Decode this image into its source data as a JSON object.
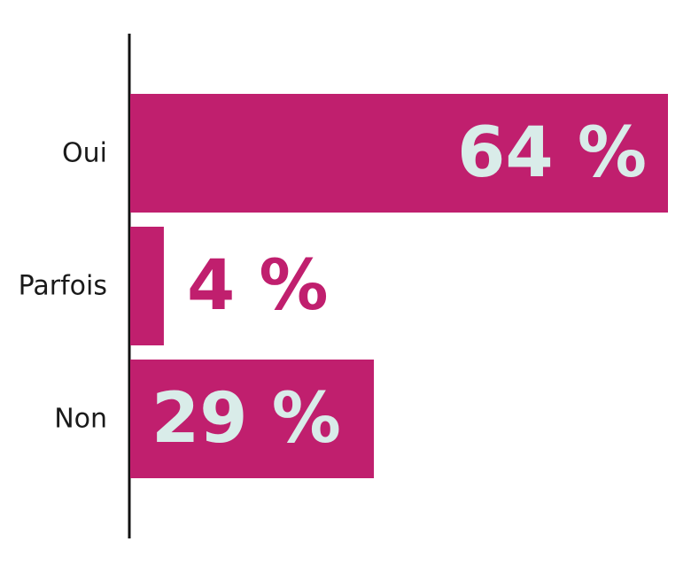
{
  "chart_data": {
    "type": "bar",
    "orientation": "horizontal",
    "categories": [
      "Oui",
      "Parfois",
      "Non"
    ],
    "values": [
      64,
      4,
      29
    ],
    "value_labels": [
      "64 %",
      "4 %",
      "29 %"
    ],
    "xlim": [
      0,
      64
    ],
    "grid": false,
    "colors": {
      "bar": "#c01f6e",
      "label_inside": "#d9ece9",
      "label_outside": "#c01f6e",
      "axis": "#111111"
    }
  }
}
